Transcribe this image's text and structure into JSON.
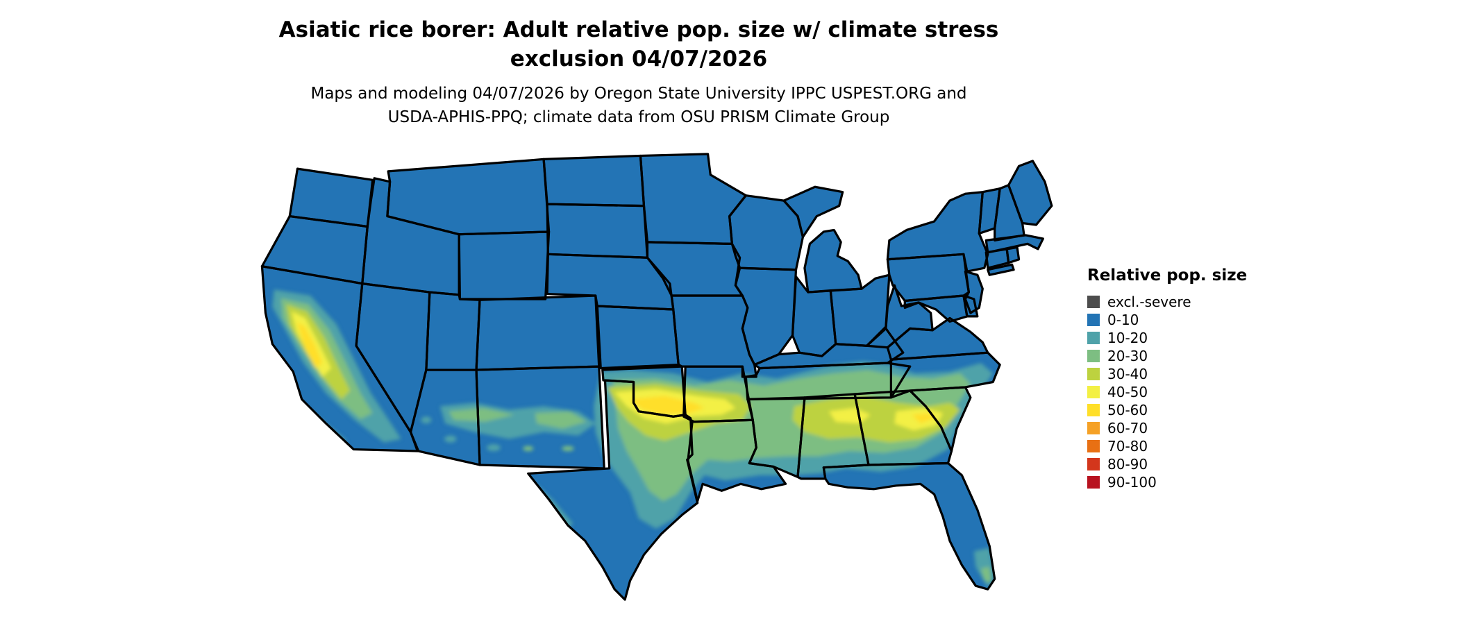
{
  "title": {
    "line1": "Asiatic rice borer: Adult relative pop. size w/ climate stress",
    "line2": "exclusion 04/07/2026"
  },
  "subtitle": {
    "line1": "Maps and modeling 04/07/2026 by Oregon State University IPPC USPEST.ORG and",
    "line2": "USDA-APHIS-PPQ; climate data from OSU PRISM Climate Group"
  },
  "legend": {
    "title": "Relative pop. size",
    "items": [
      {
        "label": "excl.-severe",
        "color": "#4d4d4d"
      },
      {
        "label": "0-10",
        "color": "#2374b5"
      },
      {
        "label": "10-20",
        "color": "#4fa2a9"
      },
      {
        "label": "20-30",
        "color": "#7dbe82"
      },
      {
        "label": "30-40",
        "color": "#bdd23f"
      },
      {
        "label": "40-50",
        "color": "#f3f044"
      },
      {
        "label": "50-60",
        "color": "#ffdf29"
      },
      {
        "label": "60-70",
        "color": "#f5a126"
      },
      {
        "label": "70-80",
        "color": "#e87014"
      },
      {
        "label": "80-90",
        "color": "#d3361c"
      },
      {
        "label": "90-100",
        "color": "#b8121f"
      }
    ]
  },
  "map": {
    "colors": {
      "state_border": "#000000",
      "water": "#ffffff"
    }
  }
}
